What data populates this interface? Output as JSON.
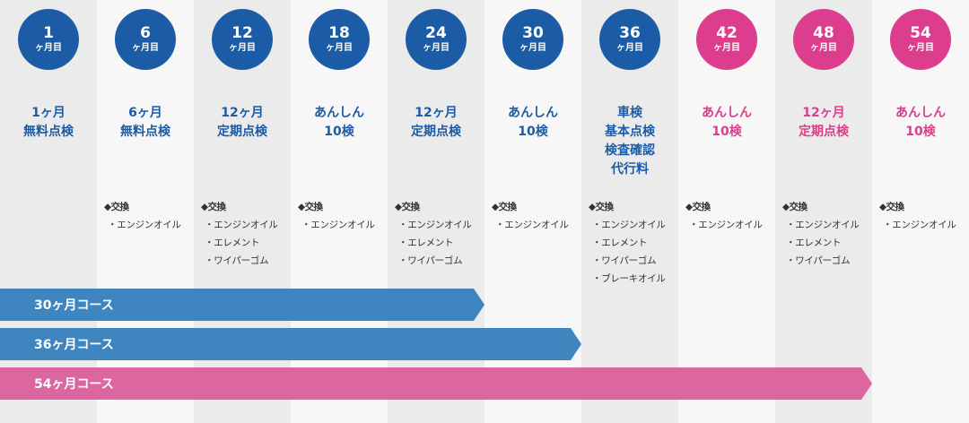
{
  "colors": {
    "blue": "#1c5ca7",
    "pink": "#dc3d8c",
    "bar_blue": "#3f86c0",
    "bar_pink": "#dc66a0"
  },
  "exchange_label": "◆交換",
  "columns": [
    {
      "num": "1",
      "unit": "ヶ月目",
      "title": "1ヶ月\n無料点検",
      "color": "blue",
      "items": []
    },
    {
      "num": "6",
      "unit": "ヶ月目",
      "title": "6ヶ月\n無料点検",
      "color": "blue",
      "items": [
        "・エンジンオイル"
      ]
    },
    {
      "num": "12",
      "unit": "ヶ月目",
      "title": "12ヶ月\n定期点検",
      "color": "blue",
      "items": [
        "・エンジンオイル",
        "・エレメント",
        "・ワイパーゴム"
      ]
    },
    {
      "num": "18",
      "unit": "ヶ月目",
      "title": "あんしん\n10検",
      "color": "blue",
      "items": [
        "・エンジンオイル"
      ]
    },
    {
      "num": "24",
      "unit": "ヶ月目",
      "title": "12ヶ月\n定期点検",
      "color": "blue",
      "items": [
        "・エンジンオイル",
        "・エレメント",
        "・ワイパーゴム"
      ]
    },
    {
      "num": "30",
      "unit": "ヶ月目",
      "title": "あんしん\n10検",
      "color": "blue",
      "items": [
        "・エンジンオイル"
      ]
    },
    {
      "num": "36",
      "unit": "ヶ月目",
      "title": "車検\n基本点検\n検査確認\n代行料",
      "color": "blue",
      "items": [
        "・エンジンオイル",
        "・エレメント",
        "・ワイパーゴム",
        "・ブレーキオイル"
      ]
    },
    {
      "num": "42",
      "unit": "ヶ月目",
      "title": "あんしん\n10検",
      "color": "pink",
      "items": [
        "・エンジンオイル"
      ]
    },
    {
      "num": "48",
      "unit": "ヶ月目",
      "title": "12ヶ月\n定期点検",
      "color": "pink",
      "items": [
        "・エンジンオイル",
        "・エレメント",
        "・ワイパーゴム"
      ]
    },
    {
      "num": "54",
      "unit": "ヶ月目",
      "title": "あんしん\n10検",
      "color": "pink",
      "items": [
        "・エンジンオイル"
      ]
    }
  ],
  "courses": [
    {
      "label": "30ヶ月コース",
      "months": 30,
      "color": "bar_blue"
    },
    {
      "label": "36ヶ月コース",
      "months": 36,
      "color": "bar_blue"
    },
    {
      "label": "54ヶ月コース",
      "months": 54,
      "color": "bar_pink"
    }
  ]
}
